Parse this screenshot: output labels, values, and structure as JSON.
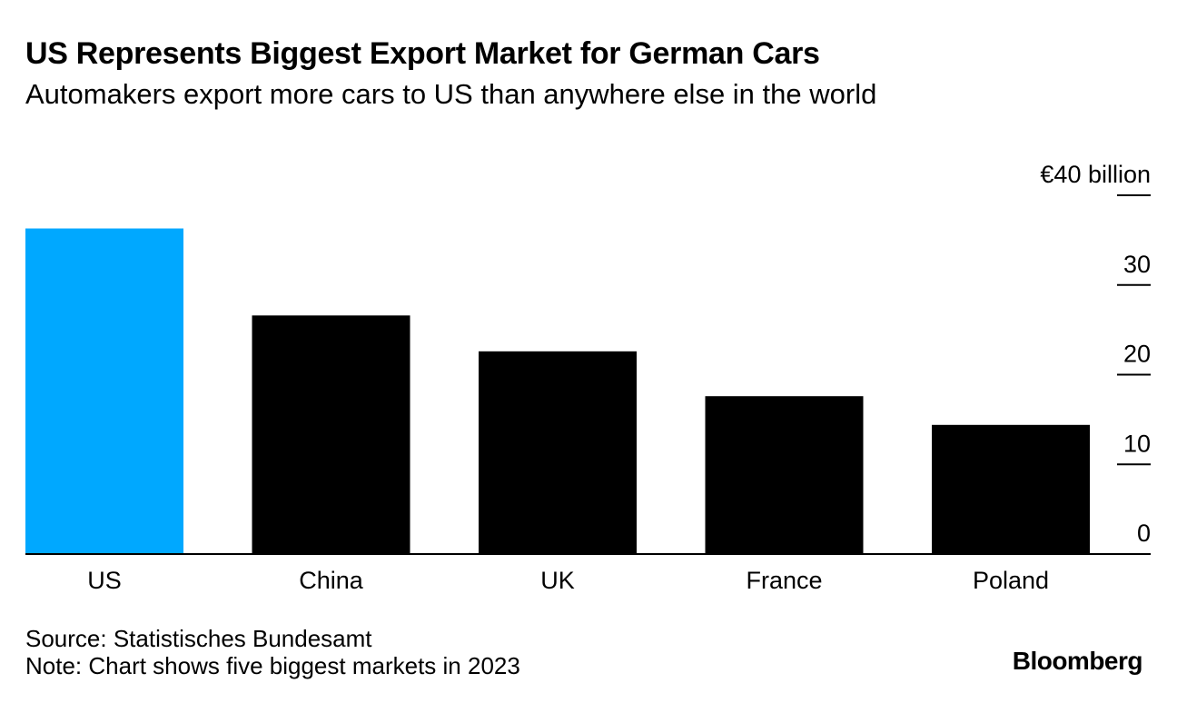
{
  "chart_data": {
    "type": "bar",
    "title": "US Represents Biggest Export Market for German Cars",
    "subtitle": "Automakers export more cars to US than anywhere else in the world",
    "categories": [
      "US",
      "China",
      "UK",
      "France",
      "Poland"
    ],
    "values": [
      36.3,
      26.6,
      22.6,
      17.6,
      14.4
    ],
    "highlight_index": 0,
    "colors": {
      "highlight": "#00a8ff",
      "default": "#000000"
    },
    "ylim": [
      0,
      40
    ],
    "yticks": [
      0,
      10,
      20,
      30,
      40
    ],
    "ytick_labels": [
      "0",
      "10",
      "20",
      "30",
      "€40 billion"
    ],
    "xlabel": "",
    "ylabel": "",
    "grid": false,
    "source": "Source: Statistisches Bundesamt",
    "note": "Note: Chart shows five biggest markets in 2023",
    "brand": "Bloomberg"
  }
}
